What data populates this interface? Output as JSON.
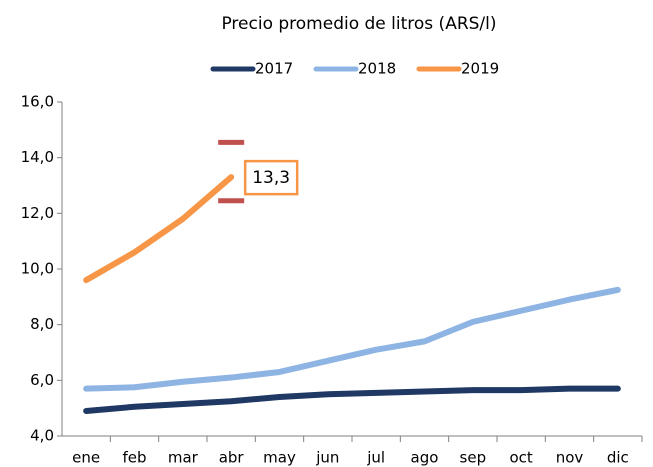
{
  "chart_data": {
    "type": "line",
    "title": "Precio promedio de litros (ARS/l)",
    "categories": [
      "ene",
      "feb",
      "mar",
      "abr",
      "may",
      "jun",
      "jul",
      "ago",
      "sep",
      "oct",
      "nov",
      "dic"
    ],
    "series": [
      {
        "name": "2017",
        "color": "#1f3864",
        "values": [
          4.9,
          5.05,
          5.15,
          5.25,
          5.4,
          5.5,
          5.55,
          5.6,
          5.65,
          5.65,
          5.7,
          5.7
        ]
      },
      {
        "name": "2018",
        "color": "#8eb4e3",
        "values": [
          5.7,
          5.75,
          5.95,
          6.1,
          6.3,
          6.7,
          7.1,
          7.4,
          8.1,
          8.5,
          8.9,
          9.25
        ]
      },
      {
        "name": "2019",
        "color": "#f79646",
        "values": [
          9.6,
          10.6,
          11.8,
          13.3,
          null,
          null,
          null,
          null,
          null,
          null,
          null,
          null
        ],
        "value_labels": [
          null,
          null,
          null,
          "13,3",
          null,
          null,
          null,
          null,
          null,
          null,
          null,
          null
        ],
        "upper": [
          null,
          null,
          null,
          14.55,
          null,
          null,
          null,
          null,
          null,
          null,
          null,
          null
        ],
        "lower": [
          null,
          null,
          null,
          12.45,
          null,
          null,
          null,
          null,
          null,
          null,
          null,
          null
        ],
        "range_color": "#c0504d"
      }
    ],
    "ylim": [
      4,
      16
    ],
    "yticks": [
      {
        "value": 4,
        "label": "4,0"
      },
      {
        "value": 6,
        "label": "6,0"
      },
      {
        "value": 8,
        "label": "8,0"
      },
      {
        "value": 10,
        "label": "10,0"
      },
      {
        "value": 12,
        "label": "12,0"
      },
      {
        "value": 14,
        "label": "14,0"
      },
      {
        "value": 16,
        "label": "16,0"
      }
    ],
    "grid": false,
    "legend": "top"
  }
}
